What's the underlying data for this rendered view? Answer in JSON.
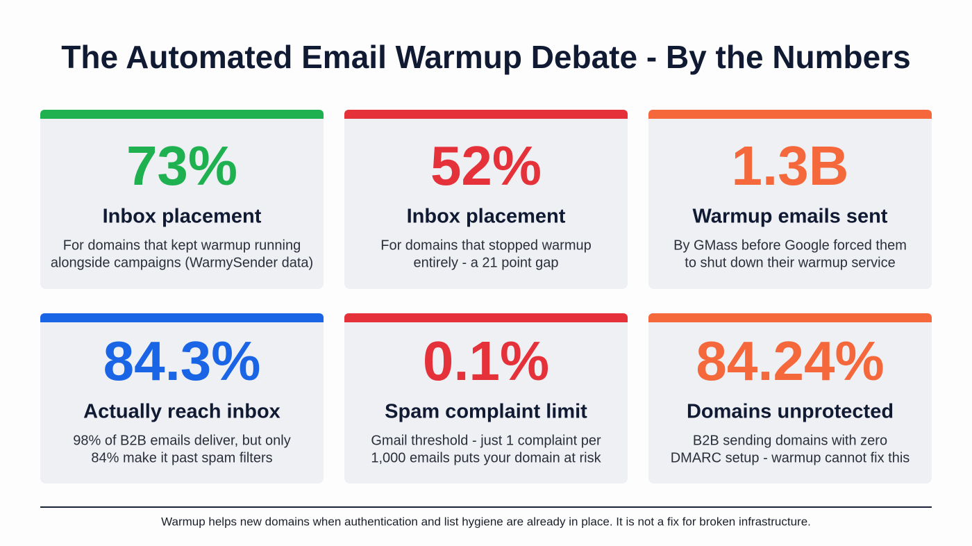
{
  "header": {
    "title": "The Automated Email Warmup Debate - By the Numbers"
  },
  "cards": [
    {
      "value": "73%",
      "label": "Inbox placement",
      "description": [
        "For domains that kept warmup running",
        "alongside campaigns (WarmySender data)"
      ],
      "color": "#1fb050"
    },
    {
      "value": "52%",
      "label": "Inbox placement",
      "description": [
        "For domains that stopped warmup",
        "entirely - a 21 point gap"
      ],
      "color": "#e5323a"
    },
    {
      "value": "1.3B",
      "label": "Warmup emails sent",
      "description": [
        "By GMass before Google forced them",
        "to shut down their warmup service"
      ],
      "color": "#f4683c"
    },
    {
      "value": "84.3%",
      "label": "Actually reach inbox",
      "description": [
        "98% of B2B emails deliver, but only",
        "84% make it past spam filters"
      ],
      "color": "#1a64e6"
    },
    {
      "value": "0.1%",
      "label": "Spam complaint limit",
      "description": [
        "Gmail threshold - just 1 complaint per",
        "1,000 emails puts your domain at risk"
      ],
      "color": "#e5323a"
    },
    {
      "value": "84.24%",
      "label": "Domains unprotected",
      "description": [
        "B2B sending domains with zero",
        "DMARC setup - warmup cannot fix this"
      ],
      "color": "#f4683c"
    }
  ],
  "footer": {
    "note": "Warmup helps new domains when authentication and list hygiene are already in place. It is not a fix for broken infrastructure."
  }
}
